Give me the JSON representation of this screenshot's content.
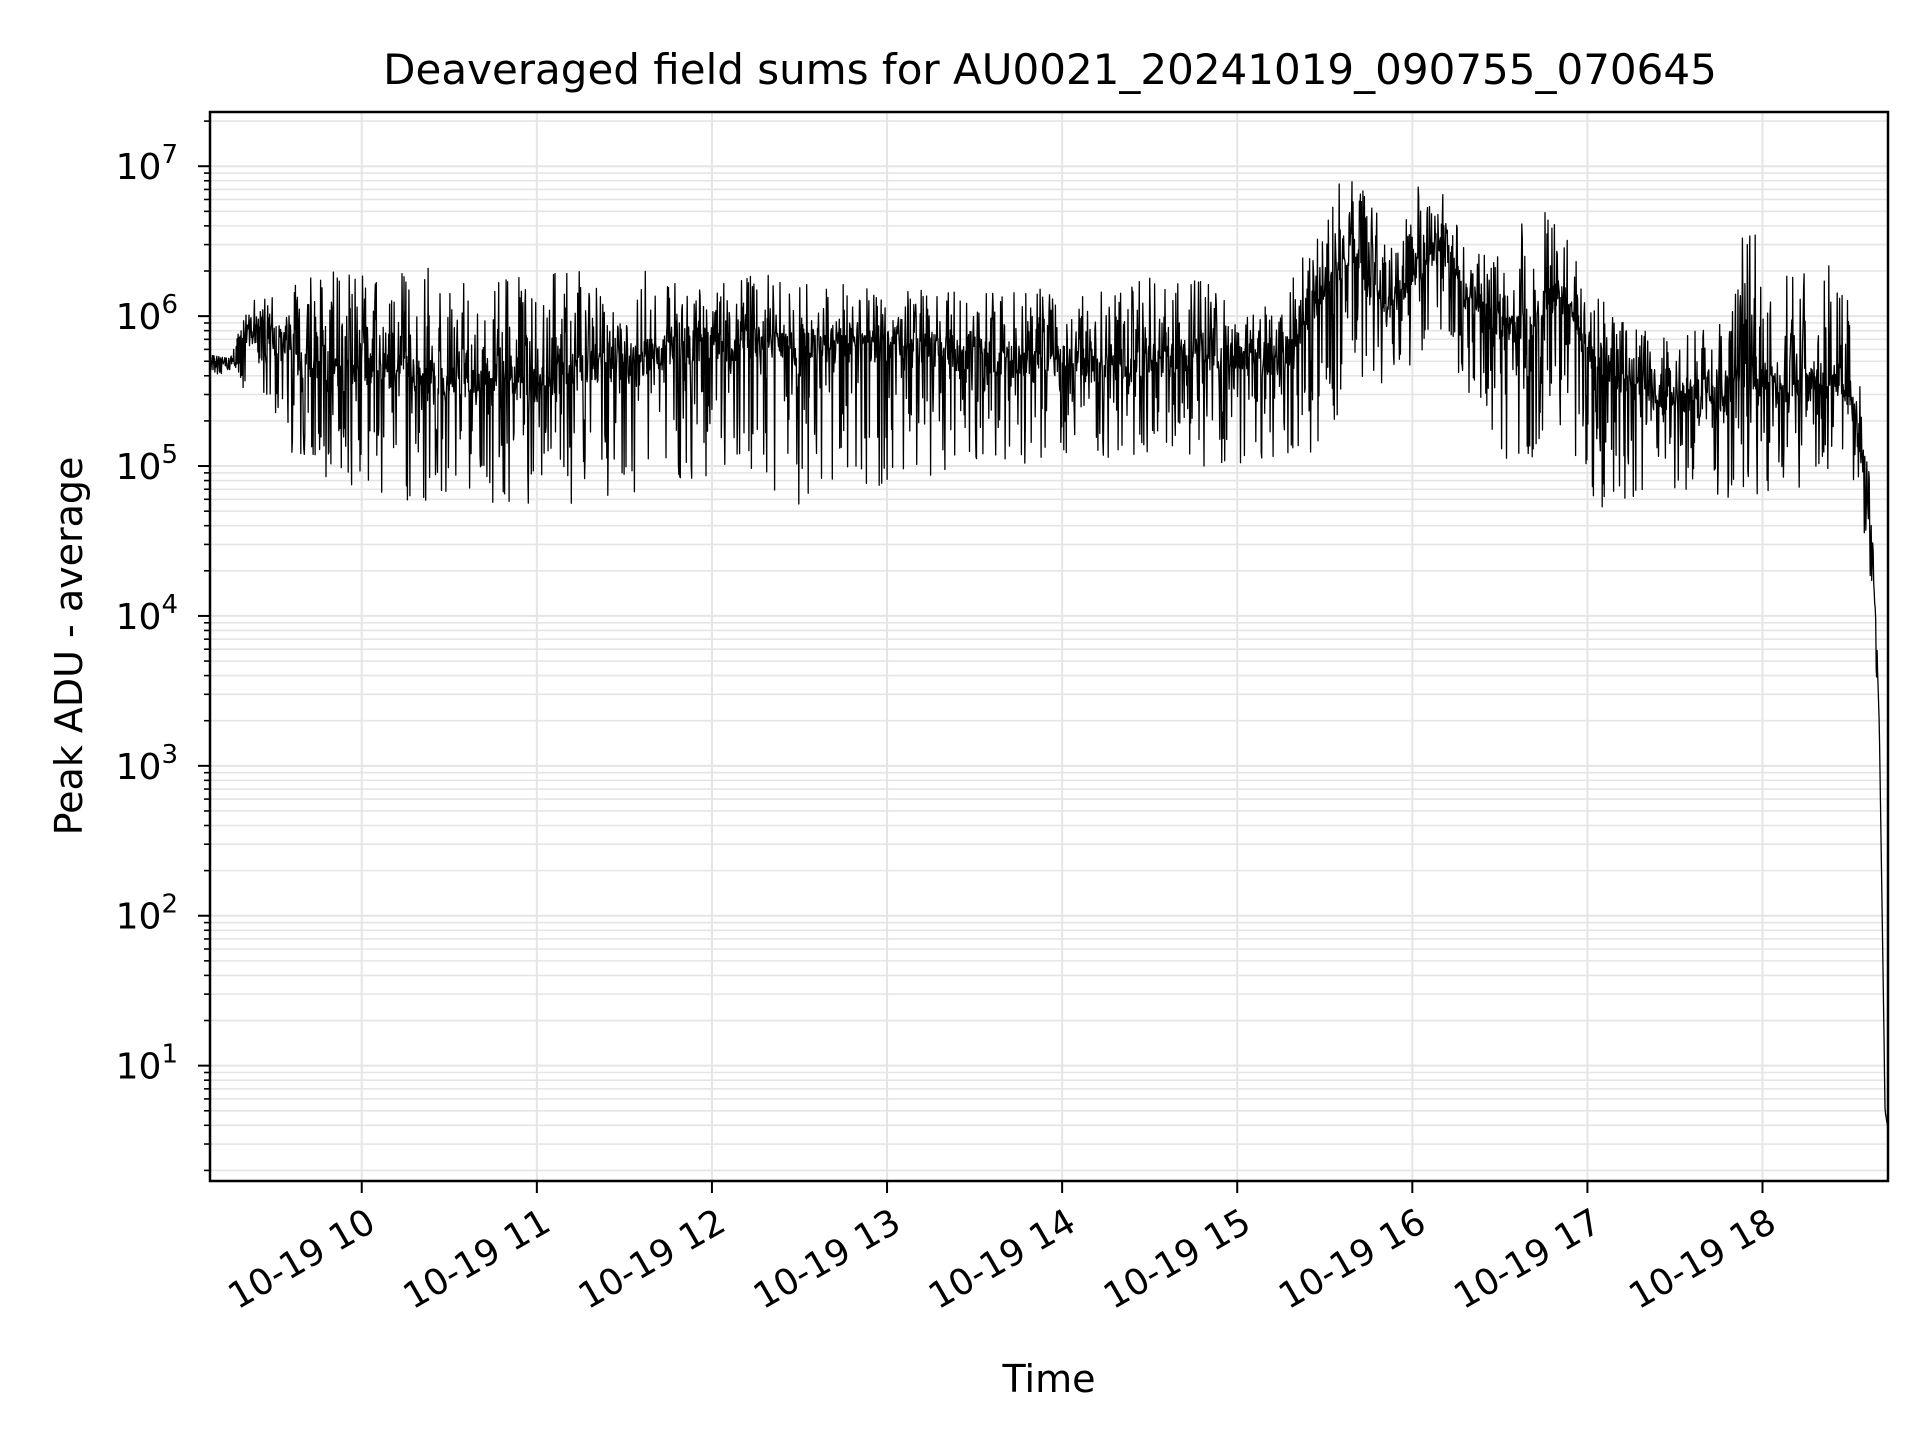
{
  "chart_data": {
    "type": "line",
    "title": "Deaveraged field sums for AU0021_20241019_090755_070645",
    "xlabel": "Time",
    "ylabel": "Peak ADU - average",
    "yscale": "log",
    "ylim": [
      1.7,
      23000000
    ],
    "xlim": [
      "2024-10-19 09:08",
      "2024-10-19 18:43"
    ],
    "grid": true,
    "line_color": "#000000",
    "grid_color": "#e5e5e5",
    "x_ticks": [
      {
        "label": "10-19 10",
        "time": "2024-10-19 10:00"
      },
      {
        "label": "10-19 11",
        "time": "2024-10-19 11:00"
      },
      {
        "label": "10-19 12",
        "time": "2024-10-19 12:00"
      },
      {
        "label": "10-19 13",
        "time": "2024-10-19 13:00"
      },
      {
        "label": "10-19 14",
        "time": "2024-10-19 14:00"
      },
      {
        "label": "10-19 15",
        "time": "2024-10-19 15:00"
      },
      {
        "label": "10-19 16",
        "time": "2024-10-19 16:00"
      },
      {
        "label": "10-19 17",
        "time": "2024-10-19 17:00"
      },
      {
        "label": "10-19 18",
        "time": "2024-10-19 18:00"
      }
    ],
    "y_ticks": [
      {
        "base": "10",
        "exp": "1",
        "value": 10
      },
      {
        "base": "10",
        "exp": "2",
        "value": 100
      },
      {
        "base": "10",
        "exp": "3",
        "value": 1000
      },
      {
        "base": "10",
        "exp": "4",
        "value": 10000
      },
      {
        "base": "10",
        "exp": "5",
        "value": 100000
      },
      {
        "base": "10",
        "exp": "6",
        "value": 1000000
      },
      {
        "base": "10",
        "exp": "7",
        "value": 10000000
      }
    ],
    "series": [
      {
        "x": [
          "2024-10-19 09:08",
          "2024-10-19 09:15",
          "2024-10-19 09:20",
          "2024-10-19 09:25",
          "2024-10-19 09:30",
          "2024-10-19 09:40",
          "2024-10-19 09:50",
          "2024-10-19 10:00",
          "2024-10-19 10:10",
          "2024-10-19 10:20",
          "2024-10-19 10:30",
          "2024-10-19 10:40",
          "2024-10-19 10:50",
          "2024-10-19 11:00",
          "2024-10-19 11:10",
          "2024-10-19 11:20",
          "2024-10-19 11:30",
          "2024-10-19 11:40",
          "2024-10-19 11:50",
          "2024-10-19 12:00",
          "2024-10-19 12:15",
          "2024-10-19 12:30",
          "2024-10-19 12:45",
          "2024-10-19 13:00",
          "2024-10-19 13:15",
          "2024-10-19 13:30",
          "2024-10-19 13:45",
          "2024-10-19 14:00",
          "2024-10-19 14:15",
          "2024-10-19 14:30",
          "2024-10-19 14:45",
          "2024-10-19 15:00",
          "2024-10-19 15:15",
          "2024-10-19 15:30",
          "2024-10-19 15:40",
          "2024-10-19 15:50",
          "2024-10-19 16:00",
          "2024-10-19 16:10",
          "2024-10-19 16:20",
          "2024-10-19 16:30",
          "2024-10-19 16:40",
          "2024-10-19 16:50",
          "2024-10-19 17:00",
          "2024-10-19 17:15",
          "2024-10-19 17:30",
          "2024-10-19 17:45",
          "2024-10-19 17:55",
          "2024-10-19 18:05",
          "2024-10-19 18:15",
          "2024-10-19 18:25",
          "2024-10-19 18:30",
          "2024-10-19 18:33",
          "2024-10-19 18:36",
          "2024-10-19 18:38",
          "2024-10-19 18:40",
          "2024-10-19 18:41",
          "2024-10-19 18:42",
          "2024-10-19 18:43"
        ],
        "center": [
          480000,
          470000,
          700000,
          900000,
          700000,
          500000,
          400000,
          450000,
          420000,
          400000,
          380000,
          360000,
          380000,
          350000,
          400000,
          450000,
          500000,
          550000,
          600000,
          650000,
          650000,
          600000,
          650000,
          650000,
          600000,
          550000,
          500000,
          500000,
          450000,
          500000,
          550000,
          550000,
          500000,
          1500000,
          2500000,
          1000000,
          2000000,
          3000000,
          1200000,
          700000,
          900000,
          1500000,
          600000,
          350000,
          300000,
          300000,
          400000,
          350000,
          350000,
          400000,
          300000,
          150000,
          60000,
          20000,
          2000,
          100,
          5,
          3.8
        ],
        "high": [
          550000,
          520000,
          1100000,
          1500000,
          1500000,
          1800000,
          2000000,
          1900000,
          2000000,
          2200000,
          2100000,
          2000000,
          2000000,
          1800000,
          2000000,
          2000000,
          2000000,
          2000000,
          2000000,
          2000000,
          1900000,
          1800000,
          1700000,
          1700000,
          1600000,
          1500000,
          1500000,
          1600000,
          1500000,
          1800000,
          2000000,
          1200000,
          1200000,
          6000000,
          10000000,
          4000000,
          8000000,
          7000000,
          3000000,
          2500000,
          5000000,
          6000000,
          1500000,
          900000,
          700000,
          1000000,
          5000000,
          2000000,
          2000000,
          2500000,
          1200000,
          400000,
          150000,
          40000,
          2000,
          100,
          5,
          3.8
        ],
        "low": [
          420000,
          400000,
          300000,
          350000,
          150000,
          90000,
          70000,
          65000,
          60000,
          58000,
          58000,
          57000,
          55000,
          52000,
          55000,
          60000,
          65000,
          70000,
          75000,
          80000,
          60000,
          55000,
          75000,
          70000,
          80000,
          95000,
          100000,
          110000,
          110000,
          120000,
          100000,
          100000,
          95000,
          110000,
          400000,
          250000,
          500000,
          700000,
          250000,
          90000,
          100000,
          150000,
          50000,
          60000,
          65000,
          60000,
          60000,
          70000,
          70000,
          100000,
          100000,
          50000,
          25000,
          8000,
          2000,
          100,
          5,
          3.8
        ]
      }
    ]
  }
}
